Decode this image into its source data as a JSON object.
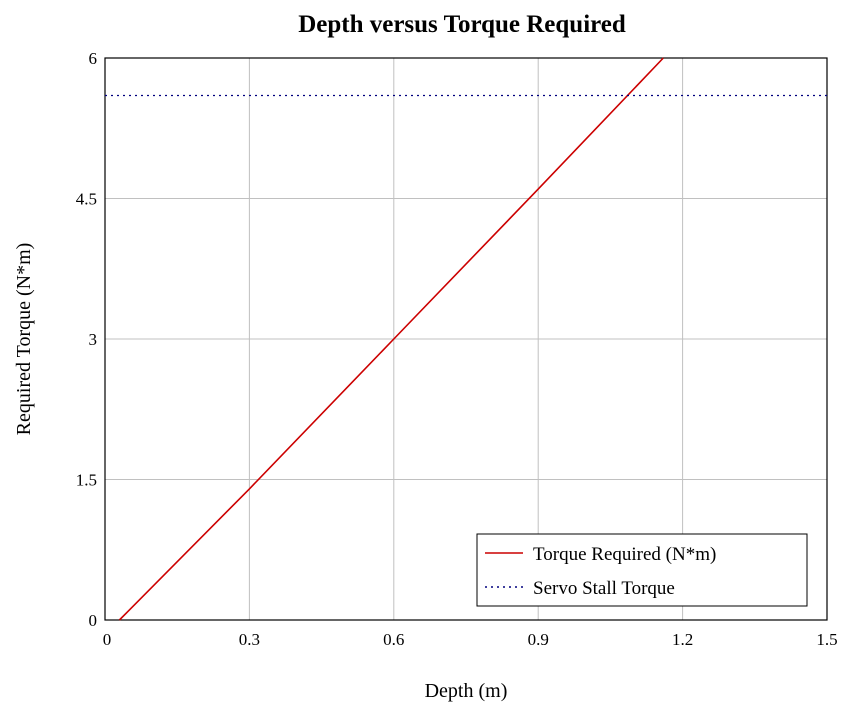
{
  "chart_data": {
    "type": "line",
    "title": "Depth versus Torque Required",
    "xlabel": "Depth (m)",
    "ylabel": "Required Torque (N*m)",
    "xlim": [
      0,
      1.5
    ],
    "ylim": [
      0,
      6
    ],
    "x_ticks": [
      "0",
      "0.3",
      "0.6",
      "0.9",
      "1.2",
      "1.5"
    ],
    "y_ticks": [
      "0",
      "1.5",
      "3",
      "4.5",
      "6"
    ],
    "grid": true,
    "legend_position": "bottom-right",
    "series": [
      {
        "name": "Torque Required (N*m)",
        "color": "#cc0000",
        "style": "solid",
        "x": [
          0.03,
          0.3,
          0.6,
          0.9,
          1.16
        ],
        "y": [
          0,
          1.4,
          3.0,
          4.6,
          6.0
        ]
      },
      {
        "name": "Servo Stall Torque",
        "color": "#00007f",
        "style": "dotted",
        "x": [
          0,
          1.5
        ],
        "y": [
          5.6,
          5.6
        ]
      }
    ]
  }
}
